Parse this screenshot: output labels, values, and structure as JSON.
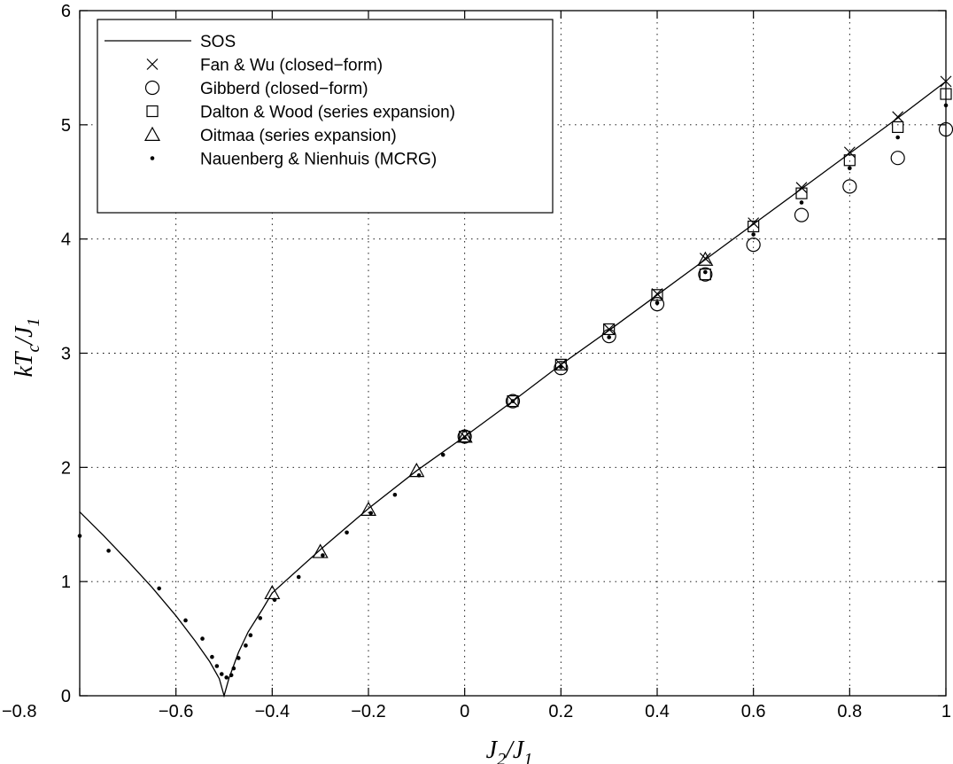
{
  "chart_data": {
    "type": "scatter",
    "xlim": [
      -0.8,
      1
    ],
    "ylim": [
      0,
      6
    ],
    "xticks": [
      -0.8,
      -0.6,
      -0.4,
      -0.2,
      0,
      0.2,
      0.4,
      0.6,
      0.8,
      1
    ],
    "yticks": [
      0,
      1,
      2,
      3,
      4,
      5,
      6
    ],
    "xtick_labels": [
      "−0.8",
      "−0.6",
      "−0.4",
      "−0.2",
      "0",
      "0.2",
      "0.4",
      "0.6",
      "0.8",
      "1"
    ],
    "ytick_labels": [
      "0",
      "1",
      "2",
      "3",
      "4",
      "5",
      "6"
    ],
    "xlabel": {
      "main1": "J",
      "sub1": "2",
      "sep": "/",
      "main2": "J",
      "sub2": "1"
    },
    "ylabel": {
      "main1": "kT",
      "sub1": "c",
      "sep": "/",
      "main2": "J",
      "sub2": "1"
    },
    "grid": true,
    "legend_position": "top-left",
    "series": [
      {
        "name": "SOS",
        "marker": "line",
        "x": [
          -0.8,
          -0.75,
          -0.7,
          -0.65,
          -0.6,
          -0.56,
          -0.53,
          -0.51,
          -0.5,
          -0.49,
          -0.47,
          -0.45,
          -0.42,
          -0.4,
          -0.3,
          -0.2,
          -0.1,
          0,
          0.1,
          0.2,
          0.3,
          0.4,
          0.5,
          0.6,
          0.7,
          0.8,
          0.9,
          1.0
        ],
        "y": [
          1.61,
          1.4,
          1.18,
          0.95,
          0.7,
          0.48,
          0.3,
          0.15,
          0.0,
          0.15,
          0.38,
          0.56,
          0.76,
          0.9,
          1.28,
          1.64,
          1.97,
          2.27,
          2.58,
          2.9,
          3.2,
          3.51,
          3.82,
          4.13,
          4.44,
          4.75,
          5.06,
          5.38
        ]
      },
      {
        "name": "Fan & Wu (closed−form)",
        "marker": "x",
        "x": [
          0,
          0.1,
          0.2,
          0.3,
          0.4,
          0.5,
          0.6,
          0.7,
          0.8,
          0.9,
          1.0
        ],
        "y": [
          2.27,
          2.58,
          2.9,
          3.21,
          3.52,
          3.83,
          4.14,
          4.45,
          4.76,
          5.07,
          5.38
        ]
      },
      {
        "name": "Gibberd (closed−form)",
        "marker": "circle",
        "x": [
          0,
          0.1,
          0.2,
          0.3,
          0.4,
          0.5,
          0.6,
          0.7,
          0.8,
          0.9,
          1.0
        ],
        "y": [
          2.27,
          2.58,
          2.87,
          3.15,
          3.43,
          3.69,
          3.95,
          4.21,
          4.46,
          4.71,
          4.96
        ]
      },
      {
        "name": "Dalton & Wood (series expansion)",
        "marker": "square",
        "x": [
          0,
          0.1,
          0.2,
          0.3,
          0.4,
          0.5,
          0.6,
          0.7,
          0.8,
          0.9,
          1.0
        ],
        "y": [
          2.27,
          2.58,
          2.9,
          3.21,
          3.51,
          3.69,
          4.11,
          4.4,
          4.69,
          4.98,
          5.27
        ]
      },
      {
        "name": "Oitmaa (series expansion)",
        "marker": "triangle",
        "x": [
          -0.4,
          -0.3,
          -0.2,
          -0.1,
          0,
          0.5
        ],
        "y": [
          0.9,
          1.26,
          1.63,
          1.97,
          2.27,
          3.82
        ]
      },
      {
        "name": "Nauenberg & Nienhuis (MCRG)",
        "marker": "dot",
        "x": [
          -0.8,
          -0.74,
          -0.635,
          -0.58,
          -0.545,
          -0.525,
          -0.515,
          -0.505,
          -0.495,
          -0.485,
          -0.48,
          -0.47,
          -0.455,
          -0.445,
          -0.425,
          -0.395,
          -0.345,
          -0.295,
          -0.245,
          -0.195,
          -0.145,
          -0.095,
          -0.045,
          0,
          0.1,
          0.2,
          0.3,
          0.4,
          0.5,
          0.6,
          0.7,
          0.8,
          0.9,
          1.0
        ],
        "y": [
          1.4,
          1.27,
          0.94,
          0.66,
          0.5,
          0.34,
          0.26,
          0.19,
          0.16,
          0.18,
          0.24,
          0.33,
          0.44,
          0.53,
          0.68,
          0.84,
          1.04,
          1.23,
          1.43,
          1.6,
          1.76,
          1.93,
          2.11,
          2.26,
          2.58,
          2.88,
          3.14,
          3.44,
          3.71,
          4.04,
          4.32,
          4.62,
          4.89,
          5.17
        ]
      }
    ]
  }
}
